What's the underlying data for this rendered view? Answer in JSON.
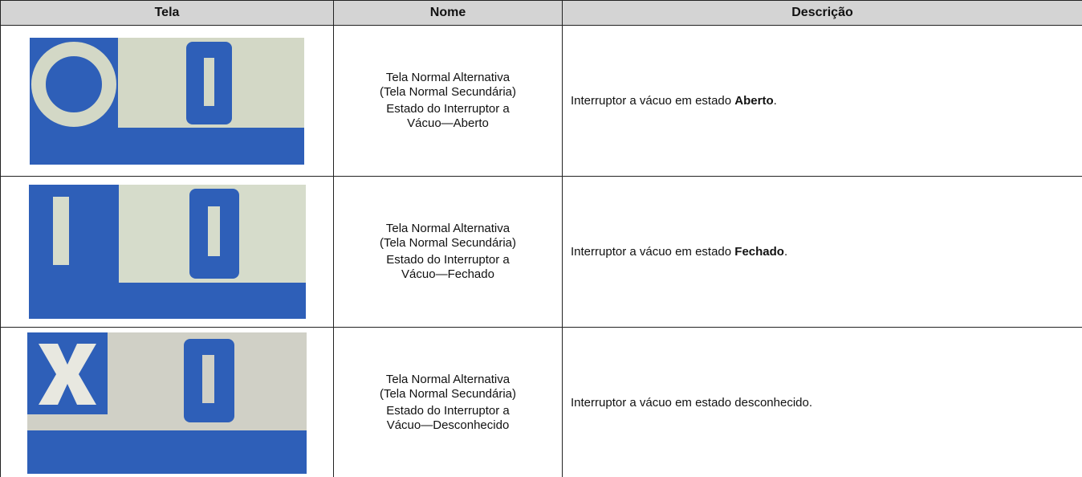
{
  "table": {
    "header": [
      "Tela",
      "Nome",
      "Descrição"
    ],
    "rows": [
      {
        "name": [
          "Tela Normal Alternativa",
          "(Tela Normal Secundária)",
          "Estado do Interruptor a Vácuo—Aberto"
        ],
        "description": {
          "text": "Interruptor a vácuo em estado ",
          "bold": "Aberto",
          "end": "."
        }
      },
      {
        "name": [
          "Tela Normal Alternativa",
          "(Tela Normal Secundária)",
          "Estado do Interruptor a Vácuo—Fechado"
        ],
        "description": {
          "text": "Interruptor a vácuo em estado ",
          "bold": "Fechado",
          "end": "."
        }
      },
      {
        "name": [
          "Tela Normal Alternativa",
          "(Tela Normal Secundária)",
          "Estado do Interruptor a Vácuo—Desconhecido"
        ],
        "description": {
          "text": "Interruptor a vácuo em estado desconhecido."
        }
      }
    ]
  }
}
